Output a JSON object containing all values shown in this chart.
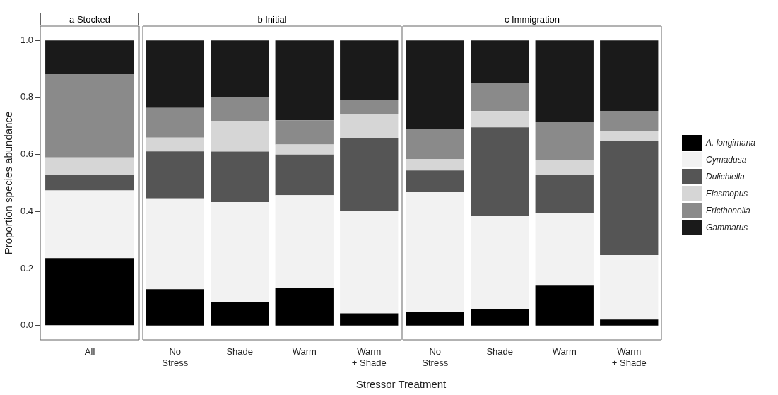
{
  "chart_data": [
    {
      "type": "bar",
      "title": "a  Stocked",
      "ylabel": "Proportion species abundance",
      "stacked": true,
      "categories": [
        "All"
      ],
      "ylim": [
        -0.05,
        1.05
      ],
      "yticks": [
        {
          "value": 0,
          "label": "0.0"
        },
        {
          "value": 0.2,
          "label": "0.2"
        },
        {
          "value": 0.4,
          "label": "0.4"
        },
        {
          "value": 0.6,
          "label": "0.6"
        },
        {
          "value": 0.8,
          "label": "0.8"
        },
        {
          "value": 1,
          "label": "1.0"
        }
      ],
      "series": [
        {
          "color": "#000000",
          "values": [
            0.237
          ]
        },
        {
          "color": "#f2f2f2",
          "values": [
            0.237
          ]
        },
        {
          "color": "#555555",
          "values": [
            0.056
          ]
        },
        {
          "color": "#d6d6d6",
          "values": [
            0.06
          ]
        },
        {
          "color": "#8a8a8a",
          "values": [
            0.29
          ]
        },
        {
          "color": "#1a1a1a",
          "values": [
            0.12
          ]
        }
      ]
    },
    {
      "type": "bar",
      "title": "b  Initial",
      "xlabel": "Stressor Treatment",
      "stacked": true,
      "tick_labels": "x",
      "categories": [
        "No Stress",
        "Shade",
        "Warm",
        "Warm + Shade"
      ],
      "ylim": [
        -0.05,
        1.05
      ],
      "series": [
        {
          "color": "#000000",
          "values": [
            0.128,
            0.082,
            0.133,
            0.043
          ]
        },
        {
          "color": "#f2f2f2",
          "values": [
            0.318,
            0.351,
            0.324,
            0.36
          ]
        },
        {
          "color": "#555555",
          "values": [
            0.165,
            0.177,
            0.143,
            0.253
          ]
        },
        {
          "color": "#d6d6d6",
          "values": [
            0.048,
            0.108,
            0.035,
            0.086
          ]
        },
        {
          "color": "#8a8a8a",
          "values": [
            0.104,
            0.083,
            0.085,
            0.048
          ]
        },
        {
          "color": "#1a1a1a",
          "values": [
            0.237,
            0.199,
            0.28,
            0.21
          ]
        }
      ]
    },
    {
      "type": "bar",
      "title": "c  Immigration",
      "stacked": true,
      "tick_labels": "x",
      "legend": "right",
      "categories": [
        "No Stress",
        "Shade",
        "Warm",
        "Warm + Shade"
      ],
      "ylim": [
        -0.05,
        1.05
      ],
      "series": [
        {
          "name": "A. longimana",
          "color": "#000000",
          "values": [
            0.047,
            0.059,
            0.14,
            0.021
          ]
        },
        {
          "name": "Cymadusa",
          "color": "#f2f2f2",
          "values": [
            0.421,
            0.327,
            0.255,
            0.226
          ]
        },
        {
          "name": "Dulichiella",
          "color": "#555555",
          "values": [
            0.076,
            0.309,
            0.132,
            0.401
          ]
        },
        {
          "name": "Elasmopus",
          "color": "#d6d6d6",
          "values": [
            0.04,
            0.057,
            0.055,
            0.034
          ]
        },
        {
          "name": "Ericthonella",
          "color": "#8a8a8a",
          "values": [
            0.105,
            0.1,
            0.132,
            0.071
          ]
        },
        {
          "name": "Gammarus",
          "color": "#1a1a1a",
          "values": [
            0.311,
            0.148,
            0.286,
            0.247
          ]
        }
      ]
    }
  ]
}
